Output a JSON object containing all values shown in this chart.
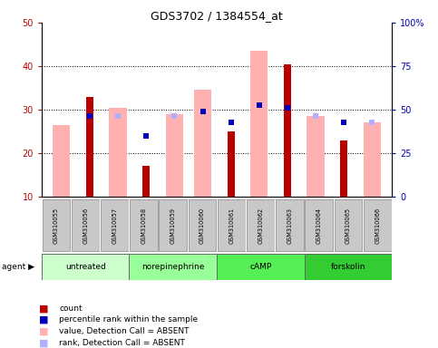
{
  "title": "GDS3702 / 1384554_at",
  "samples": [
    "GSM310055",
    "GSM310056",
    "GSM310057",
    "GSM310058",
    "GSM310059",
    "GSM310060",
    "GSM310061",
    "GSM310062",
    "GSM310063",
    "GSM310064",
    "GSM310065",
    "GSM310066"
  ],
  "count_values": [
    null,
    33.0,
    null,
    17.0,
    null,
    null,
    25.0,
    null,
    40.5,
    null,
    23.0,
    null
  ],
  "percentile_values": [
    null,
    28.5,
    null,
    24.0,
    null,
    29.5,
    27.0,
    31.0,
    30.5,
    null,
    27.0,
    null
  ],
  "value_absent": [
    26.5,
    null,
    30.5,
    null,
    29.0,
    34.5,
    null,
    43.5,
    null,
    28.5,
    null,
    27.0
  ],
  "rank_absent": [
    null,
    null,
    28.5,
    null,
    28.5,
    29.5,
    null,
    null,
    null,
    28.5,
    null,
    27.0
  ],
  "groups": [
    {
      "label": "untreated",
      "start": 0,
      "end": 3,
      "color": "#ccffcc"
    },
    {
      "label": "norepinephrine",
      "start": 3,
      "end": 6,
      "color": "#99ff99"
    },
    {
      "label": "cAMP",
      "start": 6,
      "end": 9,
      "color": "#55ee55"
    },
    {
      "label": "forskolin",
      "start": 9,
      "end": 12,
      "color": "#33cc33"
    }
  ],
  "ylim": [
    10,
    50
  ],
  "yticks": [
    10,
    20,
    30,
    40,
    50
  ],
  "y2ticks": [
    0,
    25,
    50,
    75,
    100
  ],
  "y2labels": [
    "0",
    "25",
    "50",
    "75",
    "100%"
  ],
  "count_color": "#bb0000",
  "percentile_color": "#0000bb",
  "value_absent_color": "#ffb0b0",
  "rank_absent_color": "#b0b0ff",
  "wide_bar_width": 0.62,
  "narrow_bar_width": 0.25,
  "marker_size": 4.5,
  "tick_labelsize": 7,
  "sample_box_color": "#c8c8c8",
  "figure_bg": "#ffffff"
}
